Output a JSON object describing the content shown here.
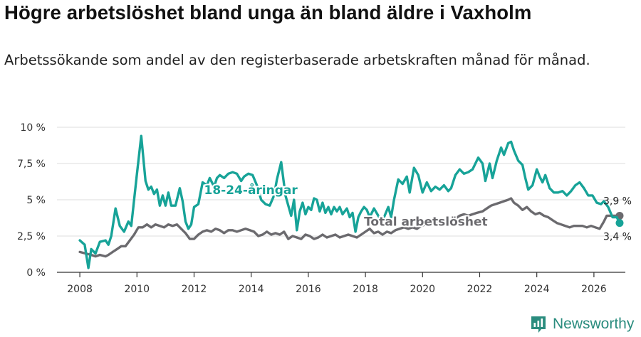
{
  "header": {
    "title": "Högre arbetslöshet bland unga än bland äldre i Vaxholm",
    "subtitle": "Arbetssökande som andel av den registerbaserade arbetskraften månad för månad."
  },
  "brand": {
    "name": "Newsworthy",
    "icon": "newsworthy-logo-icon",
    "color": "#2a8c7e"
  },
  "chart_data": {
    "type": "line",
    "title": "Högre arbetslöshet bland unga än bland äldre i Vaxholm",
    "xlabel": "",
    "ylabel": "",
    "xlim": [
      2007.2,
      2027.1
    ],
    "ylim": [
      0,
      10
    ],
    "grid": true,
    "x_ticks": [
      2008,
      2010,
      2012,
      2014,
      2016,
      2018,
      2020,
      2022,
      2024,
      2026
    ],
    "x_tick_labels": [
      "2008",
      "2010",
      "2012",
      "2014",
      "2016",
      "2018",
      "2020",
      "2022",
      "2024",
      "2026"
    ],
    "y_ticks": [
      0,
      2.5,
      5,
      7.5,
      10
    ],
    "y_tick_labels": [
      "0 %",
      "2,5 %",
      "5 %",
      "7,5 %",
      "10 %"
    ],
    "series": [
      {
        "name": "18-24-åringar",
        "label": "18-24-åringar",
        "color": "#17a398",
        "end_value_label": "3,4 %",
        "points": [
          [
            2008.0,
            2.2
          ],
          [
            2008.17,
            1.9
          ],
          [
            2008.3,
            0.3
          ],
          [
            2008.4,
            1.6
          ],
          [
            2008.55,
            1.3
          ],
          [
            2008.7,
            2.1
          ],
          [
            2008.9,
            2.2
          ],
          [
            2009.0,
            1.9
          ],
          [
            2009.1,
            2.5
          ],
          [
            2009.25,
            4.4
          ],
          [
            2009.4,
            3.2
          ],
          [
            2009.55,
            2.8
          ],
          [
            2009.7,
            3.5
          ],
          [
            2009.8,
            3.2
          ],
          [
            2009.9,
            5.0
          ],
          [
            2010.0,
            6.8
          ],
          [
            2010.15,
            9.4
          ],
          [
            2010.3,
            6.3
          ],
          [
            2010.4,
            5.7
          ],
          [
            2010.5,
            5.9
          ],
          [
            2010.6,
            5.4
          ],
          [
            2010.7,
            5.7
          ],
          [
            2010.8,
            4.6
          ],
          [
            2010.9,
            5.3
          ],
          [
            2011.0,
            4.6
          ],
          [
            2011.1,
            5.5
          ],
          [
            2011.2,
            4.6
          ],
          [
            2011.35,
            4.6
          ],
          [
            2011.5,
            5.8
          ],
          [
            2011.6,
            4.9
          ],
          [
            2011.7,
            3.5
          ],
          [
            2011.8,
            3.0
          ],
          [
            2011.9,
            3.3
          ],
          [
            2012.0,
            4.5
          ],
          [
            2012.15,
            4.7
          ],
          [
            2012.3,
            6.2
          ],
          [
            2012.45,
            6.0
          ],
          [
            2012.55,
            6.5
          ],
          [
            2012.7,
            5.9
          ],
          [
            2012.8,
            6.5
          ],
          [
            2012.9,
            6.7
          ],
          [
            2013.05,
            6.5
          ],
          [
            2013.2,
            6.8
          ],
          [
            2013.35,
            6.9
          ],
          [
            2013.5,
            6.8
          ],
          [
            2013.65,
            6.3
          ],
          [
            2013.75,
            6.6
          ],
          [
            2013.9,
            6.8
          ],
          [
            2014.05,
            6.7
          ],
          [
            2014.2,
            6.0
          ],
          [
            2014.35,
            5.0
          ],
          [
            2014.5,
            4.7
          ],
          [
            2014.65,
            4.6
          ],
          [
            2014.8,
            5.3
          ],
          [
            2014.9,
            6.4
          ],
          [
            2015.05,
            7.6
          ],
          [
            2015.2,
            5.3
          ],
          [
            2015.3,
            4.6
          ],
          [
            2015.4,
            3.9
          ],
          [
            2015.5,
            5.0
          ],
          [
            2015.6,
            2.9
          ],
          [
            2015.7,
            4.2
          ],
          [
            2015.8,
            4.8
          ],
          [
            2015.9,
            4.0
          ],
          [
            2016.0,
            4.5
          ],
          [
            2016.1,
            4.3
          ],
          [
            2016.2,
            5.1
          ],
          [
            2016.3,
            5.0
          ],
          [
            2016.4,
            4.2
          ],
          [
            2016.5,
            4.8
          ],
          [
            2016.6,
            4.1
          ],
          [
            2016.7,
            4.5
          ],
          [
            2016.8,
            4.0
          ],
          [
            2016.9,
            4.5
          ],
          [
            2017.0,
            4.2
          ],
          [
            2017.1,
            4.5
          ],
          [
            2017.2,
            4.0
          ],
          [
            2017.35,
            4.4
          ],
          [
            2017.45,
            3.8
          ],
          [
            2017.55,
            4.1
          ],
          [
            2017.65,
            2.8
          ],
          [
            2017.75,
            3.8
          ],
          [
            2017.85,
            4.2
          ],
          [
            2017.95,
            4.5
          ],
          [
            2018.05,
            4.3
          ],
          [
            2018.15,
            3.8
          ],
          [
            2018.3,
            4.4
          ],
          [
            2018.45,
            3.9
          ],
          [
            2018.55,
            3.6
          ],
          [
            2018.65,
            3.8
          ],
          [
            2018.8,
            4.5
          ],
          [
            2018.9,
            3.8
          ],
          [
            2019.0,
            5.0
          ],
          [
            2019.15,
            6.4
          ],
          [
            2019.3,
            6.1
          ],
          [
            2019.45,
            6.6
          ],
          [
            2019.55,
            5.5
          ],
          [
            2019.7,
            7.2
          ],
          [
            2019.85,
            6.7
          ],
          [
            2020.0,
            5.5
          ],
          [
            2020.15,
            6.2
          ],
          [
            2020.3,
            5.6
          ],
          [
            2020.45,
            5.9
          ],
          [
            2020.6,
            5.7
          ],
          [
            2020.75,
            6.0
          ],
          [
            2020.9,
            5.6
          ],
          [
            2021.0,
            5.8
          ],
          [
            2021.15,
            6.7
          ],
          [
            2021.3,
            7.1
          ],
          [
            2021.45,
            6.8
          ],
          [
            2021.6,
            6.9
          ],
          [
            2021.75,
            7.1
          ],
          [
            2021.95,
            7.9
          ],
          [
            2022.1,
            7.5
          ],
          [
            2022.2,
            6.3
          ],
          [
            2022.35,
            7.5
          ],
          [
            2022.45,
            6.5
          ],
          [
            2022.6,
            7.7
          ],
          [
            2022.75,
            8.6
          ],
          [
            2022.85,
            8.1
          ],
          [
            2023.0,
            8.9
          ],
          [
            2023.1,
            9.0
          ],
          [
            2023.2,
            8.4
          ],
          [
            2023.35,
            7.7
          ],
          [
            2023.5,
            7.4
          ],
          [
            2023.6,
            6.5
          ],
          [
            2023.7,
            5.7
          ],
          [
            2023.85,
            6.0
          ],
          [
            2024.0,
            7.1
          ],
          [
            2024.1,
            6.6
          ],
          [
            2024.2,
            6.2
          ],
          [
            2024.3,
            6.7
          ],
          [
            2024.45,
            5.8
          ],
          [
            2024.6,
            5.5
          ],
          [
            2024.75,
            5.5
          ],
          [
            2024.9,
            5.6
          ],
          [
            2025.05,
            5.3
          ],
          [
            2025.2,
            5.6
          ],
          [
            2025.35,
            6.0
          ],
          [
            2025.5,
            6.2
          ],
          [
            2025.65,
            5.8
          ],
          [
            2025.8,
            5.3
          ],
          [
            2025.95,
            5.3
          ],
          [
            2026.1,
            4.8
          ],
          [
            2026.25,
            4.7
          ],
          [
            2026.35,
            4.9
          ],
          [
            2026.5,
            4.5
          ],
          [
            2026.65,
            3.8
          ],
          [
            2026.8,
            3.8
          ],
          [
            2026.9,
            3.4
          ]
        ]
      },
      {
        "name": "Total arbetslöshet",
        "label": "Total arbetslöshet",
        "color": "#6b6a6e",
        "end_value_label": "3,9 %",
        "points": [
          [
            2008.0,
            1.4
          ],
          [
            2008.2,
            1.3
          ],
          [
            2008.4,
            1.2
          ],
          [
            2008.55,
            1.1
          ],
          [
            2008.7,
            1.2
          ],
          [
            2008.9,
            1.1
          ],
          [
            2009.0,
            1.2
          ],
          [
            2009.15,
            1.4
          ],
          [
            2009.3,
            1.6
          ],
          [
            2009.45,
            1.8
          ],
          [
            2009.6,
            1.8
          ],
          [
            2009.75,
            2.2
          ],
          [
            2009.9,
            2.6
          ],
          [
            2010.05,
            3.1
          ],
          [
            2010.2,
            3.1
          ],
          [
            2010.35,
            3.3
          ],
          [
            2010.5,
            3.1
          ],
          [
            2010.65,
            3.3
          ],
          [
            2010.8,
            3.2
          ],
          [
            2010.95,
            3.1
          ],
          [
            2011.1,
            3.3
          ],
          [
            2011.25,
            3.2
          ],
          [
            2011.4,
            3.3
          ],
          [
            2011.55,
            3.0
          ],
          [
            2011.7,
            2.7
          ],
          [
            2011.85,
            2.3
          ],
          [
            2012.0,
            2.3
          ],
          [
            2012.15,
            2.6
          ],
          [
            2012.3,
            2.8
          ],
          [
            2012.45,
            2.9
          ],
          [
            2012.6,
            2.8
          ],
          [
            2012.75,
            3.0
          ],
          [
            2012.9,
            2.9
          ],
          [
            2013.05,
            2.7
          ],
          [
            2013.2,
            2.9
          ],
          [
            2013.35,
            2.9
          ],
          [
            2013.5,
            2.8
          ],
          [
            2013.65,
            2.9
          ],
          [
            2013.8,
            3.0
          ],
          [
            2013.95,
            2.9
          ],
          [
            2014.1,
            2.8
          ],
          [
            2014.25,
            2.5
          ],
          [
            2014.4,
            2.6
          ],
          [
            2014.55,
            2.8
          ],
          [
            2014.7,
            2.6
          ],
          [
            2014.85,
            2.7
          ],
          [
            2015.0,
            2.6
          ],
          [
            2015.15,
            2.8
          ],
          [
            2015.3,
            2.3
          ],
          [
            2015.45,
            2.5
          ],
          [
            2015.6,
            2.4
          ],
          [
            2015.75,
            2.3
          ],
          [
            2015.9,
            2.6
          ],
          [
            2016.05,
            2.5
          ],
          [
            2016.2,
            2.3
          ],
          [
            2016.35,
            2.4
          ],
          [
            2016.5,
            2.6
          ],
          [
            2016.65,
            2.4
          ],
          [
            2016.8,
            2.5
          ],
          [
            2016.95,
            2.6
          ],
          [
            2017.1,
            2.4
          ],
          [
            2017.25,
            2.5
          ],
          [
            2017.4,
            2.6
          ],
          [
            2017.55,
            2.5
          ],
          [
            2017.7,
            2.4
          ],
          [
            2017.85,
            2.6
          ],
          [
            2018.0,
            2.8
          ],
          [
            2018.15,
            3.0
          ],
          [
            2018.3,
            2.7
          ],
          [
            2018.45,
            2.8
          ],
          [
            2018.6,
            2.6
          ],
          [
            2018.75,
            2.8
          ],
          [
            2018.9,
            2.7
          ],
          [
            2019.05,
            2.9
          ],
          [
            2019.2,
            3.0
          ],
          [
            2019.35,
            3.1
          ],
          [
            2019.5,
            3.0
          ],
          [
            2019.65,
            3.1
          ],
          [
            2019.8,
            3.0
          ],
          [
            2019.95,
            3.2
          ],
          [
            2020.1,
            3.3
          ],
          [
            2020.25,
            3.4
          ],
          [
            2020.4,
            3.3
          ],
          [
            2020.55,
            3.4
          ],
          [
            2020.7,
            3.5
          ],
          [
            2020.85,
            3.4
          ],
          [
            2021.0,
            3.6
          ],
          [
            2021.15,
            3.7
          ],
          [
            2021.3,
            3.9
          ],
          [
            2021.45,
            4.0
          ],
          [
            2021.6,
            3.9
          ],
          [
            2021.75,
            4.0
          ],
          [
            2021.9,
            4.1
          ],
          [
            2022.1,
            4.2
          ],
          [
            2022.25,
            4.4
          ],
          [
            2022.4,
            4.6
          ],
          [
            2022.55,
            4.7
          ],
          [
            2022.7,
            4.8
          ],
          [
            2022.85,
            4.9
          ],
          [
            2023.0,
            5.0
          ],
          [
            2023.1,
            5.1
          ],
          [
            2023.2,
            4.8
          ],
          [
            2023.35,
            4.6
          ],
          [
            2023.5,
            4.3
          ],
          [
            2023.65,
            4.5
          ],
          [
            2023.8,
            4.2
          ],
          [
            2023.95,
            4.0
          ],
          [
            2024.1,
            4.1
          ],
          [
            2024.25,
            3.9
          ],
          [
            2024.4,
            3.8
          ],
          [
            2024.55,
            3.6
          ],
          [
            2024.7,
            3.4
          ],
          [
            2024.85,
            3.3
          ],
          [
            2025.0,
            3.2
          ],
          [
            2025.15,
            3.1
          ],
          [
            2025.3,
            3.2
          ],
          [
            2025.45,
            3.2
          ],
          [
            2025.6,
            3.2
          ],
          [
            2025.75,
            3.1
          ],
          [
            2025.9,
            3.2
          ],
          [
            2026.05,
            3.1
          ],
          [
            2026.2,
            3.0
          ],
          [
            2026.35,
            3.5
          ],
          [
            2026.45,
            3.9
          ],
          [
            2026.6,
            3.9
          ],
          [
            2026.75,
            3.9
          ],
          [
            2026.9,
            3.9
          ]
        ]
      }
    ]
  }
}
